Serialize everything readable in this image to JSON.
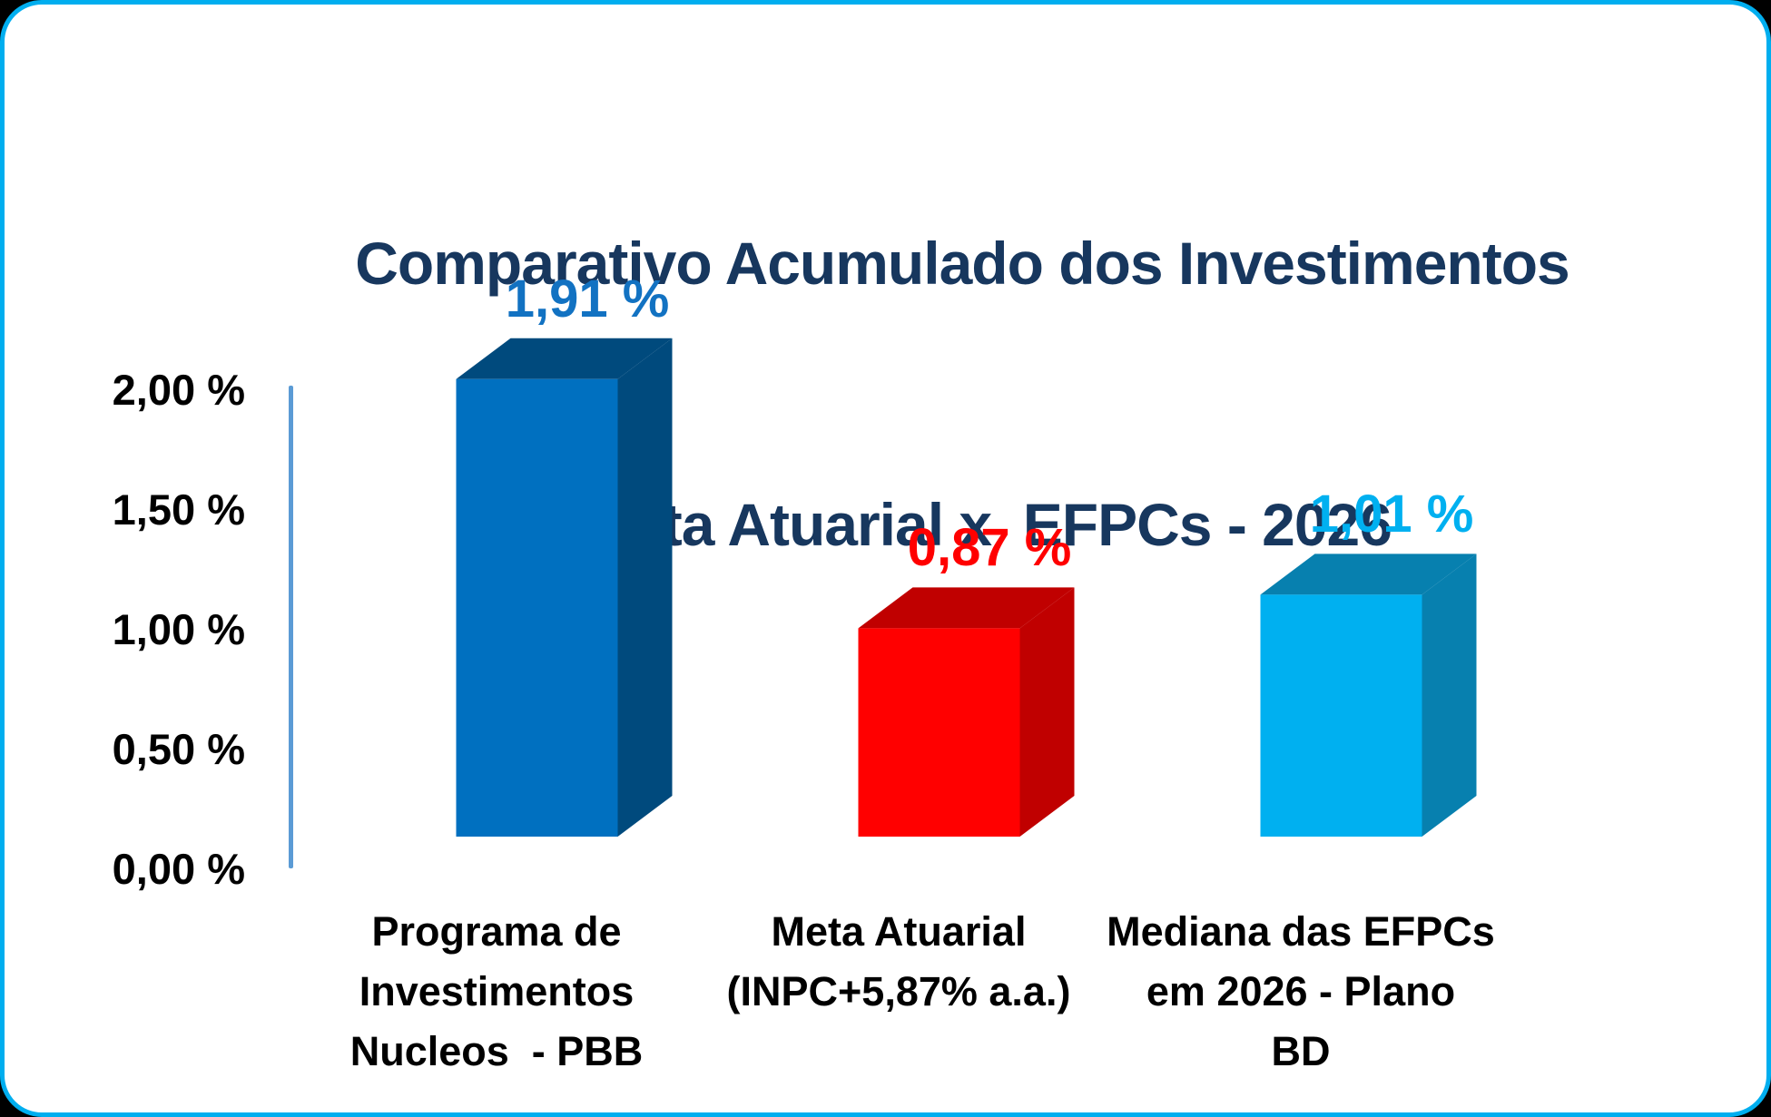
{
  "frame": {
    "background": "#FFFFFF",
    "border_color": "#00AEEF",
    "outside_color": "#000000"
  },
  "title": {
    "line1": "Comparativo Acumulado dos Investimentos",
    "line2": "x Meta Atuarial x  EFPCs - 2026",
    "color": "#17375E"
  },
  "chart_data": {
    "type": "bar",
    "style": "3d-column",
    "title": "Comparativo Acumulado dos Investimentos x Meta Atuarial x  EFPCs - 2026",
    "categories": [
      "Programa de Investimentos Nucleos  - PBB",
      "Meta Atuarial (INPC+5,87% a.a.)",
      "Mediana das EFPCs em 2026 - Plano BD"
    ],
    "category_label_lines": [
      [
        "Programa de",
        "Investimentos",
        "Nucleos  - PBB"
      ],
      [
        "Meta Atuarial",
        "(INPC+5,87% a.a.)"
      ],
      [
        "Mediana das EFPCs",
        "em 2026 - Plano",
        "BD"
      ]
    ],
    "values": [
      1.91,
      0.87,
      1.01
    ],
    "value_labels": [
      "1,91 %",
      "0,87 %",
      "1,01 %"
    ],
    "bar_colors": [
      {
        "front": "#0070C0",
        "dark": "#004A7D",
        "label": "#1272C2"
      },
      {
        "front": "#FF0000",
        "dark": "#C00000",
        "label": "#FF0000"
      },
      {
        "front": "#00B0F0",
        "dark": "#0780AF",
        "label": "#00B0F0"
      }
    ],
    "y_axis": {
      "tick_labels": [
        "2,00 %",
        "1,50 %",
        "1,00 %",
        "0,50 %",
        "0,00 %"
      ],
      "tick_values": [
        2.0,
        1.5,
        1.0,
        0.5,
        0.0
      ],
      "line_color": "#5B9BD5",
      "label_color": "#000000"
    },
    "ylim": [
      0,
      2
    ],
    "xlabel": "",
    "ylabel": "",
    "grid": false,
    "legend": false
  }
}
